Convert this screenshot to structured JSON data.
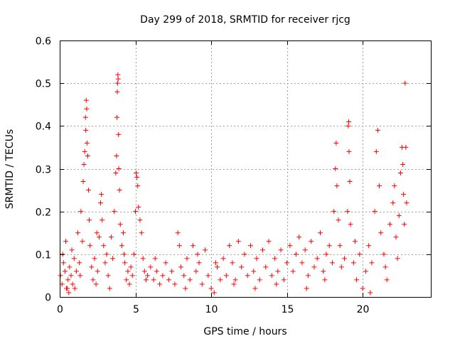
{
  "chart_data": {
    "type": "scatter",
    "title": "Day 299 of 2018, SRMTID for receiver rjcg",
    "xlabel": "GPS time / hours",
    "ylabel": "SRMTID / TECUs",
    "xlim": [
      0,
      24.5
    ],
    "ylim": [
      0,
      0.6
    ],
    "xticks": [
      0,
      5,
      10,
      15,
      20
    ],
    "xtick_labels": [
      "0",
      "5",
      "10",
      "15",
      "20"
    ],
    "yticks": [
      0,
      0.1,
      0.2,
      0.3,
      0.4,
      0.5,
      0.6
    ],
    "ytick_labels": [
      "0",
      "0.1",
      "0.2",
      "0.3",
      "0.4",
      "0.5",
      "0.6"
    ],
    "grid": true,
    "marker": "+",
    "color": "#ff0000",
    "series": [
      {
        "name": "SRMTID",
        "points": [
          [
            0.05,
            0.05
          ],
          [
            0.15,
            0.03
          ],
          [
            0.25,
            0.08
          ],
          [
            0.35,
            0.06
          ],
          [
            0.45,
            0.02
          ],
          [
            0.55,
            0.04
          ],
          [
            0.65,
            0.07
          ],
          [
            0.75,
            0.05
          ],
          [
            0.85,
            0.03
          ],
          [
            0.95,
            0.09
          ],
          [
            0.2,
            0.1
          ],
          [
            0.4,
            0.13
          ],
          [
            0.6,
            0.01
          ],
          [
            0.8,
            0.11
          ],
          [
            1.0,
            0.02
          ],
          [
            1.1,
            0.06
          ],
          [
            1.2,
            0.15
          ],
          [
            1.3,
            0.08
          ],
          [
            1.4,
            0.2
          ],
          [
            1.5,
            0.13
          ],
          [
            1.55,
            0.27
          ],
          [
            1.6,
            0.31
          ],
          [
            1.65,
            0.34
          ],
          [
            1.7,
            0.42
          ],
          [
            1.72,
            0.39
          ],
          [
            1.75,
            0.46
          ],
          [
            1.78,
            0.44
          ],
          [
            1.8,
            0.36
          ],
          [
            1.85,
            0.33
          ],
          [
            1.9,
            0.25
          ],
          [
            1.95,
            0.18
          ],
          [
            2.0,
            0.12
          ],
          [
            2.1,
            0.07
          ],
          [
            2.2,
            0.04
          ],
          [
            2.3,
            0.09
          ],
          [
            2.4,
            0.03
          ],
          [
            2.5,
            0.06
          ],
          [
            2.6,
            0.14
          ],
          [
            2.7,
            0.22
          ],
          [
            2.75,
            0.24
          ],
          [
            2.8,
            0.18
          ],
          [
            2.9,
            0.12
          ],
          [
            3.0,
            0.08
          ],
          [
            3.1,
            0.1
          ],
          [
            3.2,
            0.05
          ],
          [
            3.3,
            0.02
          ],
          [
            3.4,
            0.14
          ],
          [
            3.5,
            0.09
          ],
          [
            3.6,
            0.2
          ],
          [
            3.7,
            0.29
          ],
          [
            3.75,
            0.33
          ],
          [
            3.78,
            0.42
          ],
          [
            3.8,
            0.48
          ],
          [
            3.82,
            0.5
          ],
          [
            3.84,
            0.52
          ],
          [
            3.86,
            0.51
          ],
          [
            3.88,
            0.38
          ],
          [
            3.9,
            0.3
          ],
          [
            3.95,
            0.25
          ],
          [
            4.0,
            0.17
          ],
          [
            4.1,
            0.12
          ],
          [
            4.2,
            0.15
          ],
          [
            4.3,
            0.08
          ],
          [
            4.4,
            0.04
          ],
          [
            4.5,
            0.06
          ],
          [
            4.6,
            0.03
          ],
          [
            4.7,
            0.07
          ],
          [
            4.8,
            0.05
          ],
          [
            4.9,
            0.1
          ],
          [
            5.0,
            0.2
          ],
          [
            5.05,
            0.29
          ],
          [
            5.1,
            0.28
          ],
          [
            5.15,
            0.26
          ],
          [
            5.2,
            0.21
          ],
          [
            5.3,
            0.18
          ],
          [
            5.4,
            0.15
          ],
          [
            5.5,
            0.09
          ],
          [
            5.6,
            0.06
          ],
          [
            5.7,
            0.04
          ],
          [
            5.8,
            0.05
          ],
          [
            6.0,
            0.07
          ],
          [
            6.2,
            0.04
          ],
          [
            6.4,
            0.06
          ],
          [
            6.6,
            0.03
          ],
          [
            6.8,
            0.05
          ],
          [
            7.0,
            0.08
          ],
          [
            7.2,
            0.04
          ],
          [
            7.4,
            0.06
          ],
          [
            7.6,
            0.03
          ],
          [
            7.8,
            0.15
          ],
          [
            7.9,
            0.12
          ],
          [
            8.0,
            0.07
          ],
          [
            8.2,
            0.05
          ],
          [
            8.4,
            0.09
          ],
          [
            8.6,
            0.04
          ],
          [
            8.8,
            0.12
          ],
          [
            9.0,
            0.06
          ],
          [
            9.2,
            0.08
          ],
          [
            9.4,
            0.03
          ],
          [
            9.6,
            0.11
          ],
          [
            9.8,
            0.05
          ],
          [
            10.0,
            0.02
          ],
          [
            10.2,
            0.01
          ],
          [
            10.4,
            0.07
          ],
          [
            10.6,
            0.04
          ],
          [
            10.8,
            0.09
          ],
          [
            11.0,
            0.05
          ],
          [
            11.2,
            0.12
          ],
          [
            11.4,
            0.08
          ],
          [
            11.6,
            0.04
          ],
          [
            11.8,
            0.13
          ],
          [
            12.0,
            0.07
          ],
          [
            12.2,
            0.1
          ],
          [
            12.4,
            0.05
          ],
          [
            12.6,
            0.12
          ],
          [
            12.8,
            0.06
          ],
          [
            13.0,
            0.09
          ],
          [
            13.2,
            0.04
          ],
          [
            13.4,
            0.11
          ],
          [
            13.6,
            0.07
          ],
          [
            13.8,
            0.13
          ],
          [
            14.0,
            0.05
          ],
          [
            14.2,
            0.09
          ],
          [
            14.4,
            0.06
          ],
          [
            14.6,
            0.11
          ],
          [
            14.8,
            0.04
          ],
          [
            15.0,
            0.08
          ],
          [
            15.2,
            0.12
          ],
          [
            15.4,
            0.06
          ],
          [
            15.6,
            0.1
          ],
          [
            15.8,
            0.14
          ],
          [
            16.0,
            0.08
          ],
          [
            16.2,
            0.11
          ],
          [
            16.4,
            0.05
          ],
          [
            16.6,
            0.13
          ],
          [
            16.8,
            0.07
          ],
          [
            17.0,
            0.09
          ],
          [
            17.2,
            0.15
          ],
          [
            17.4,
            0.06
          ],
          [
            17.6,
            0.1
          ],
          [
            17.8,
            0.12
          ],
          [
            18.0,
            0.08
          ],
          [
            18.1,
            0.2
          ],
          [
            18.2,
            0.3
          ],
          [
            18.25,
            0.36
          ],
          [
            18.3,
            0.26
          ],
          [
            18.4,
            0.18
          ],
          [
            18.5,
            0.12
          ],
          [
            18.6,
            0.07
          ],
          [
            18.8,
            0.09
          ],
          [
            19.0,
            0.2
          ],
          [
            19.05,
            0.4
          ],
          [
            19.08,
            0.41
          ],
          [
            19.1,
            0.34
          ],
          [
            19.15,
            0.27
          ],
          [
            19.2,
            0.17
          ],
          [
            19.4,
            0.08
          ],
          [
            19.6,
            0.04
          ],
          [
            19.8,
            0.1
          ],
          [
            20.0,
            0.02
          ],
          [
            20.2,
            0.06
          ],
          [
            20.4,
            0.12
          ],
          [
            20.6,
            0.08
          ],
          [
            20.8,
            0.2
          ],
          [
            20.9,
            0.34
          ],
          [
            21.0,
            0.39
          ],
          [
            21.1,
            0.26
          ],
          [
            21.2,
            0.15
          ],
          [
            21.4,
            0.1
          ],
          [
            21.6,
            0.04
          ],
          [
            21.8,
            0.17
          ],
          [
            22.0,
            0.22
          ],
          [
            22.1,
            0.26
          ],
          [
            22.2,
            0.14
          ],
          [
            22.4,
            0.19
          ],
          [
            22.5,
            0.29
          ],
          [
            22.6,
            0.35
          ],
          [
            22.65,
            0.31
          ],
          [
            22.7,
            0.24
          ],
          [
            22.75,
            0.17
          ],
          [
            22.8,
            0.5
          ],
          [
            22.85,
            0.35
          ],
          [
            22.9,
            0.22
          ],
          [
            0.5,
            0.02
          ],
          [
            1.35,
            0.05
          ],
          [
            2.45,
            0.15
          ],
          [
            4.25,
            0.1
          ],
          [
            6.3,
            0.09
          ],
          [
            8.3,
            0.02
          ],
          [
            9.1,
            0.1
          ],
          [
            10.3,
            0.08
          ],
          [
            11.5,
            0.03
          ],
          [
            12.9,
            0.02
          ],
          [
            14.3,
            0.03
          ],
          [
            16.3,
            0.02
          ],
          [
            17.5,
            0.04
          ],
          [
            19.5,
            0.13
          ],
          [
            20.5,
            0.01
          ],
          [
            21.5,
            0.07
          ],
          [
            22.3,
            0.09
          ]
        ]
      }
    ]
  }
}
